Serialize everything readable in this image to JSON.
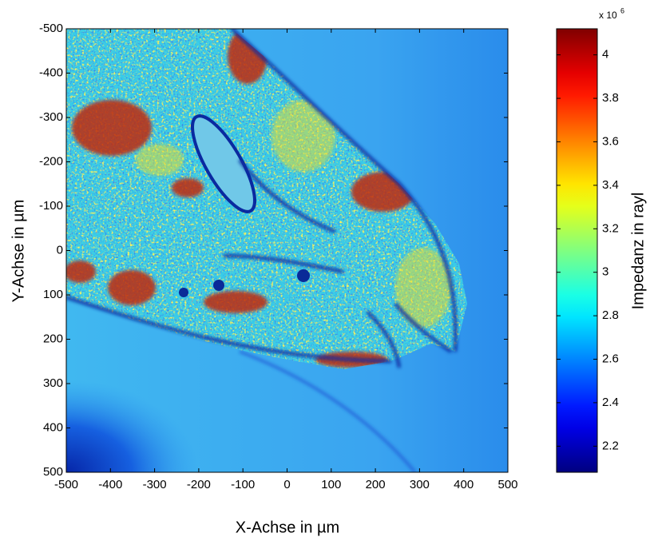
{
  "chart_data": {
    "type": "heatmap",
    "xlabel": "X-Achse in µm",
    "ylabel": "Y-Achse in µm",
    "xlim": [
      -500,
      500
    ],
    "xticks": [
      -500,
      -400,
      -300,
      -200,
      -100,
      0,
      100,
      200,
      300,
      400,
      500
    ],
    "ylim": [
      -500,
      500
    ],
    "yticks": [
      -500,
      -400,
      -300,
      -200,
      -100,
      0,
      100,
      200,
      300,
      400,
      500
    ],
    "y_reversed": true,
    "colormap": "jet",
    "colorbar": {
      "label": "Impedanz in rayl",
      "scale_base": "x 10",
      "scale_exponent": "6",
      "clim": [
        2.08,
        4.12
      ],
      "ticks": [
        2.2,
        2.4,
        2.6,
        2.8,
        3,
        3.2,
        3.4,
        3.6,
        3.8,
        4
      ]
    }
  }
}
